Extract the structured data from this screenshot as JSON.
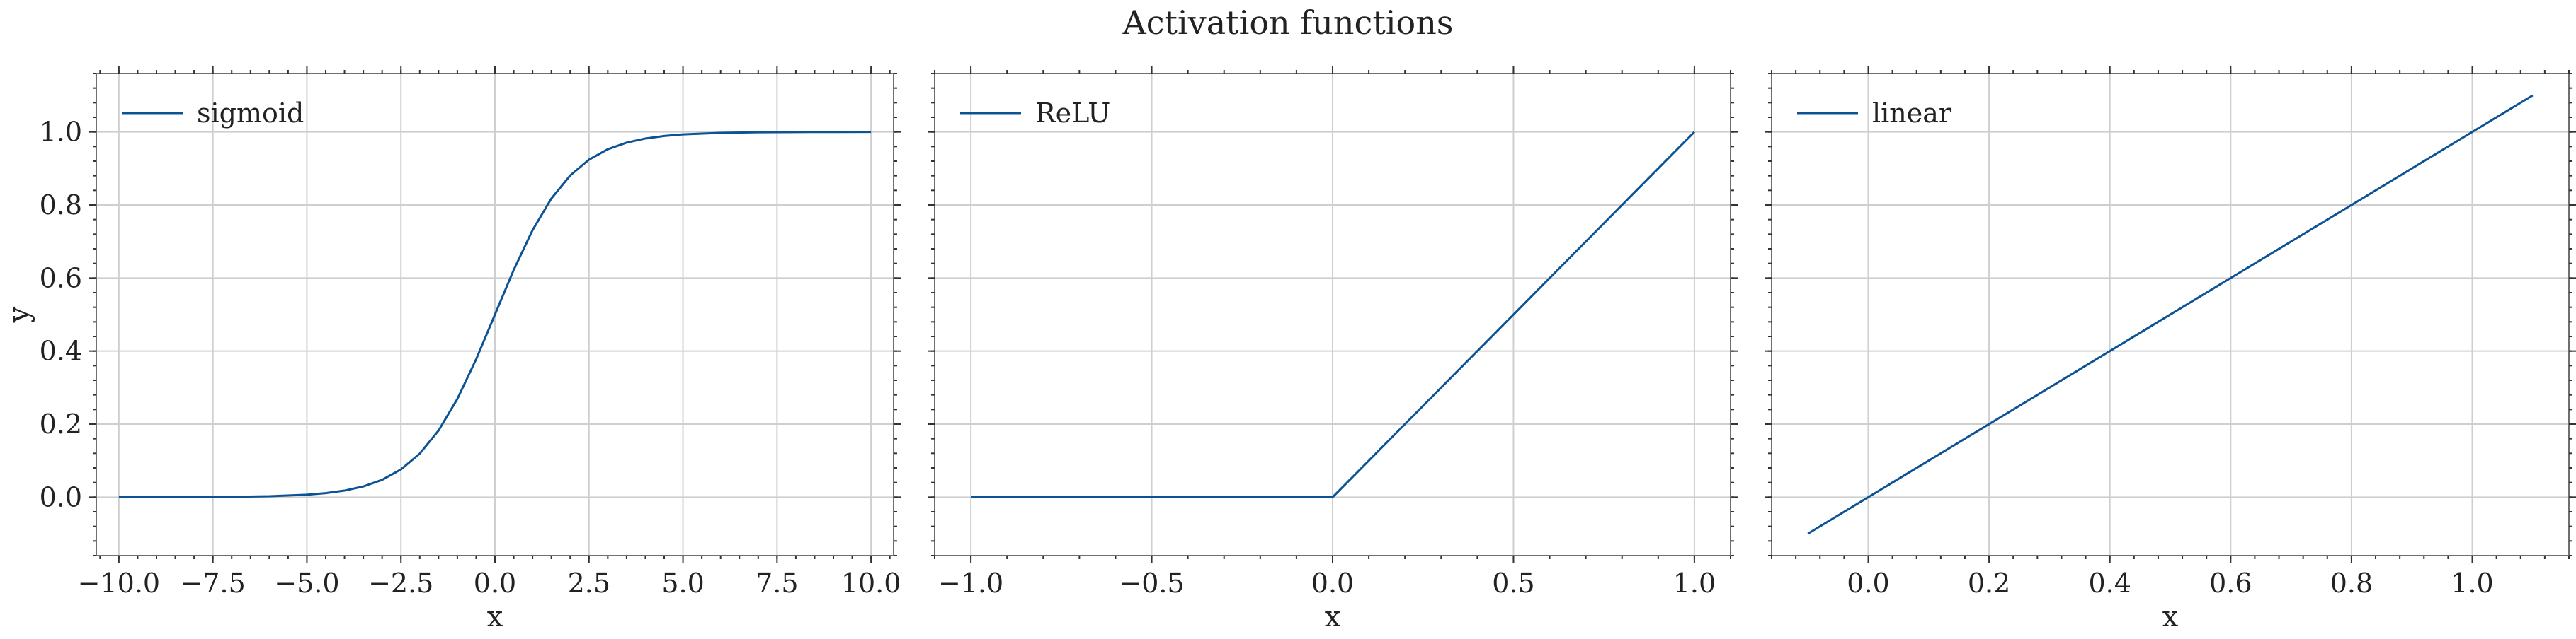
{
  "figure": {
    "title": "Activation functions",
    "line_color": "#0b5394",
    "grid_color": "#cfcfcf"
  },
  "chart_data": [
    {
      "type": "line",
      "xlabel": "x",
      "ylabel": "y",
      "xlim": [
        -10.6,
        10.6
      ],
      "ylim": [
        -0.16,
        1.16
      ],
      "xticks": [
        -10.0,
        -7.5,
        -5.0,
        -2.5,
        0.0,
        2.5,
        5.0,
        7.5,
        10.0
      ],
      "xtick_labels": [
        "−10.0",
        "−7.5",
        "−5.0",
        "−2.5",
        "0.0",
        "2.5",
        "5.0",
        "7.5",
        "10.0"
      ],
      "yticks": [
        0.0,
        0.2,
        0.4,
        0.6,
        0.8,
        1.0
      ],
      "ytick_labels": [
        "0.0",
        "0.2",
        "0.4",
        "0.6",
        "0.8",
        "1.0"
      ],
      "grid": true,
      "legend": "top-left",
      "series": [
        {
          "name": "sigmoid",
          "x": [
            -10,
            -9,
            -8,
            -7,
            -6,
            -5,
            -4.5,
            -4,
            -3.5,
            -3,
            -2.5,
            -2,
            -1.5,
            -1,
            -0.5,
            0,
            0.5,
            1,
            1.5,
            2,
            2.5,
            3,
            3.5,
            4,
            4.5,
            5,
            6,
            7,
            8,
            9,
            10
          ],
          "y": [
            5e-05,
            0.00012,
            0.00034,
            0.00091,
            0.00247,
            0.0067,
            0.011,
            0.018,
            0.0293,
            0.0474,
            0.0759,
            0.1192,
            0.1824,
            0.2689,
            0.3775,
            0.5,
            0.6225,
            0.7311,
            0.8176,
            0.8808,
            0.9241,
            0.9526,
            0.9707,
            0.982,
            0.989,
            0.9933,
            0.9975,
            0.9991,
            0.9997,
            0.9999,
            1.0
          ]
        }
      ]
    },
    {
      "type": "line",
      "xlabel": "x",
      "xlim": [
        -1.1,
        1.1
      ],
      "ylim": [
        -0.16,
        1.16
      ],
      "xticks": [
        -1.0,
        -0.5,
        0.0,
        0.5,
        1.0
      ],
      "xtick_labels": [
        "−1.0",
        "−0.5",
        "0.0",
        "0.5",
        "1.0"
      ],
      "yticks": [
        0.0,
        0.2,
        0.4,
        0.6,
        0.8,
        1.0
      ],
      "ytick_labels": [],
      "grid": true,
      "legend": "top-left",
      "series": [
        {
          "name": "ReLU",
          "x": [
            -1.0,
            0.0,
            1.0
          ],
          "y": [
            0.0,
            0.0,
            1.0
          ]
        }
      ]
    },
    {
      "type": "line",
      "xlabel": "x",
      "xlim": [
        -0.16,
        1.16
      ],
      "ylim": [
        -0.16,
        1.16
      ],
      "xticks": [
        0.0,
        0.2,
        0.4,
        0.6,
        0.8,
        1.0
      ],
      "xtick_labels": [
        "0.0",
        "0.2",
        "0.4",
        "0.6",
        "0.8",
        "1.0"
      ],
      "yticks": [
        0.0,
        0.2,
        0.4,
        0.6,
        0.8,
        1.0
      ],
      "ytick_labels": [],
      "grid": true,
      "legend": "top-left",
      "series": [
        {
          "name": "linear",
          "x": [
            -0.1,
            1.1
          ],
          "y": [
            -0.1,
            1.1
          ]
        }
      ]
    }
  ]
}
